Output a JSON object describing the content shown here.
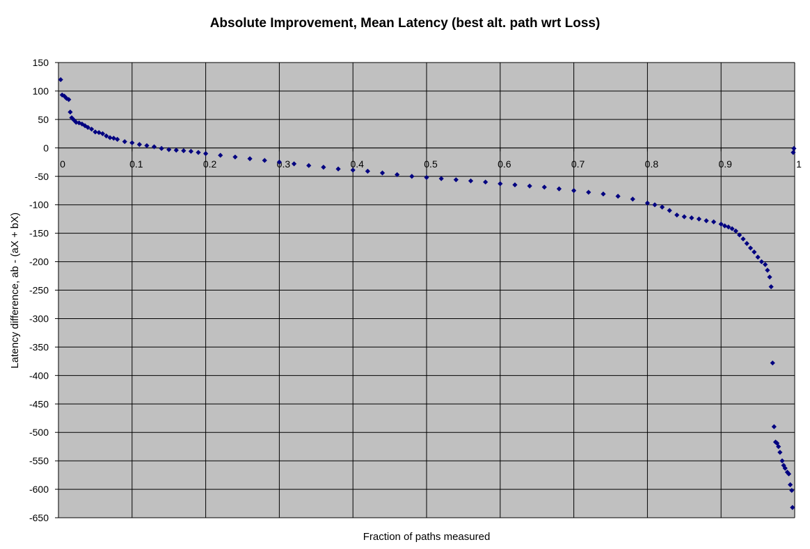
{
  "chart_data": {
    "type": "scatter",
    "title": "Absolute Improvement, Mean Latency (best alt. path wrt Loss)",
    "xlabel": "Fraction of paths measured",
    "ylabel": "Latency difference, ab - (aX + bX)",
    "xlim": [
      0,
      1
    ],
    "ylim": [
      -650,
      150
    ],
    "x_ticks": [
      "0",
      "0.1",
      "0.2",
      "0.3",
      "0.4",
      "0.5",
      "0.6",
      "0.7",
      "0.8",
      "0.9",
      "1"
    ],
    "y_ticks": [
      "150",
      "100",
      "50",
      "0",
      "-50",
      "-100",
      "-150",
      "-200",
      "-250",
      "-300",
      "-350",
      "-400",
      "-450",
      "-500",
      "-550",
      "-600",
      "-650"
    ],
    "grid": true,
    "legend": "none",
    "marker": "diamond",
    "colors": {
      "plot_background": "#c0c0c0",
      "marker": "#000080",
      "grid": "#000000"
    },
    "series": [
      {
        "x": [
          0.003,
          0.005,
          0.008,
          0.011,
          0.014,
          0.016,
          0.018,
          0.021,
          0.024,
          0.028,
          0.032,
          0.036,
          0.04,
          0.045,
          0.05,
          0.055,
          0.06,
          0.065,
          0.07,
          0.075,
          0.08,
          0.09,
          0.1,
          0.11,
          0.12,
          0.13,
          0.14,
          0.15,
          0.16,
          0.17,
          0.18,
          0.19,
          0.2,
          0.22,
          0.24,
          0.26,
          0.28,
          0.3,
          0.32,
          0.34,
          0.36,
          0.38,
          0.4,
          0.42,
          0.44,
          0.46,
          0.48,
          0.5,
          0.52,
          0.54,
          0.56,
          0.58,
          0.6,
          0.62,
          0.64,
          0.66,
          0.68,
          0.7,
          0.72,
          0.74,
          0.76,
          0.78,
          0.8,
          0.81,
          0.82,
          0.83,
          0.84,
          0.85,
          0.86,
          0.87,
          0.88,
          0.89,
          0.9,
          0.905,
          0.91,
          0.915,
          0.92,
          0.925,
          0.93,
          0.935,
          0.94,
          0.945,
          0.95,
          0.955,
          0.96,
          0.963,
          0.966,
          0.968,
          0.97,
          0.972,
          0.974,
          0.976,
          0.978,
          0.98,
          0.983,
          0.985,
          0.987,
          0.99,
          0.992,
          0.994,
          0.996,
          0.997,
          0.998,
          0.999
        ],
        "y": [
          120,
          93,
          91,
          87,
          85,
          63,
          53,
          49,
          45,
          44,
          42,
          39,
          36,
          33,
          28,
          27,
          25,
          21,
          18,
          17,
          15,
          11,
          9,
          6,
          4,
          2,
          -1,
          -3,
          -4,
          -5,
          -6,
          -8,
          -10,
          -13,
          -16,
          -19,
          -22,
          -25,
          -28,
          -31,
          -34,
          -37,
          -39,
          -41,
          -44,
          -47,
          -50,
          -52,
          -54,
          -56,
          -58,
          -60,
          -63,
          -65,
          -67,
          -69,
          -72,
          -75,
          -78,
          -81,
          -85,
          -90,
          -97,
          -100,
          -104,
          -110,
          -118,
          -121,
          -123,
          -125,
          -128,
          -130,
          -134,
          -137,
          -139,
          -142,
          -146,
          -153,
          -160,
          -168,
          -176,
          -183,
          -192,
          -200,
          -205,
          -215,
          -227,
          -244,
          -378,
          -490,
          -517,
          -519,
          -525,
          -535,
          -550,
          -558,
          -563,
          -570,
          -573,
          -592,
          -602,
          -632,
          -8,
          -1
        ]
      }
    ]
  }
}
